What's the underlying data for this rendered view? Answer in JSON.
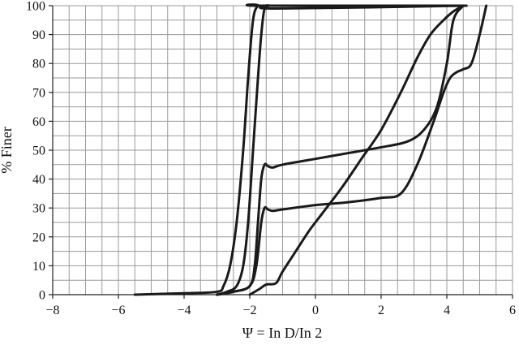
{
  "chart_data": {
    "type": "line",
    "title": "",
    "xlabel": "Ψ = In D/In 2",
    "ylabel": "% Finer",
    "xlim": [
      -8,
      6
    ],
    "ylim": [
      0,
      100
    ],
    "x_ticks": [
      -8,
      -6,
      -4,
      -2,
      0,
      2,
      4,
      6
    ],
    "y_ticks": [
      0,
      10,
      20,
      30,
      40,
      50,
      60,
      70,
      80,
      90,
      100
    ],
    "x_tick_labels": [
      "−8",
      "−6",
      "−4",
      "−2",
      "0",
      "2",
      "4",
      "6"
    ],
    "y_tick_labels": [
      "0",
      "10",
      "20",
      "30",
      "40",
      "50",
      "60",
      "70",
      "80",
      "90",
      "100"
    ],
    "grid": true,
    "minor_grid_step": {
      "x": 0.5,
      "y": 5
    },
    "series": [
      {
        "x": [
          -5.5,
          -4.0,
          -3.0,
          -2.8,
          -2.6,
          -2.4,
          -2.2,
          -2.05,
          -1.9,
          -1.75,
          -1.6,
          4.5
        ],
        "y": [
          0,
          0.5,
          1,
          3,
          10,
          25,
          50,
          75,
          95,
          100,
          100,
          100
        ]
      },
      {
        "x": [
          -3.0,
          -2.7,
          -2.4,
          -2.2,
          -2.05,
          -1.9,
          -1.75,
          -1.65,
          -1.55,
          -1.4,
          -1.2,
          4.6
        ],
        "y": [
          0,
          1,
          3,
          10,
          25,
          50,
          75,
          90,
          99,
          100,
          99,
          100
        ]
      },
      {
        "x": [
          -3.0,
          -2.5,
          -2.0,
          -1.85,
          -1.75,
          -1.65,
          -1.55,
          -1.45,
          -1.3,
          -1.0,
          0.0,
          1.0,
          2.0,
          2.8,
          3.3,
          3.7,
          4.0,
          4.2,
          4.5
        ],
        "y": [
          0,
          1,
          3,
          10,
          25,
          40,
          45,
          44.5,
          44,
          45,
          47,
          49,
          51,
          53,
          57,
          65,
          80,
          95,
          100
        ]
      },
      {
        "x": [
          -3.0,
          -2.5,
          -2.0,
          -1.8,
          -1.65,
          -1.55,
          -1.45,
          -1.3,
          -1.0,
          0.0,
          1.0,
          2.0,
          2.6,
          3.1,
          3.6,
          3.9,
          4.1,
          4.3,
          4.5,
          4.75,
          5.0,
          5.2
        ],
        "y": [
          0,
          1,
          3,
          10,
          25,
          30,
          29.5,
          29,
          29.5,
          31,
          32,
          33.5,
          35,
          45,
          60,
          70,
          75,
          77,
          78,
          80,
          90,
          100
        ]
      },
      {
        "x": [
          -2.0,
          -1.7,
          -1.5,
          -1.2,
          -1.0,
          -0.6,
          -0.2,
          0.2,
          0.8,
          1.4,
          2.0,
          2.6,
          3.1,
          3.5,
          3.9,
          4.2,
          4.5
        ],
        "y": [
          0,
          2,
          3.5,
          4,
          8,
          15,
          22,
          28,
          37,
          47,
          57,
          70,
          82,
          90,
          95,
          98,
          100
        ]
      }
    ]
  }
}
